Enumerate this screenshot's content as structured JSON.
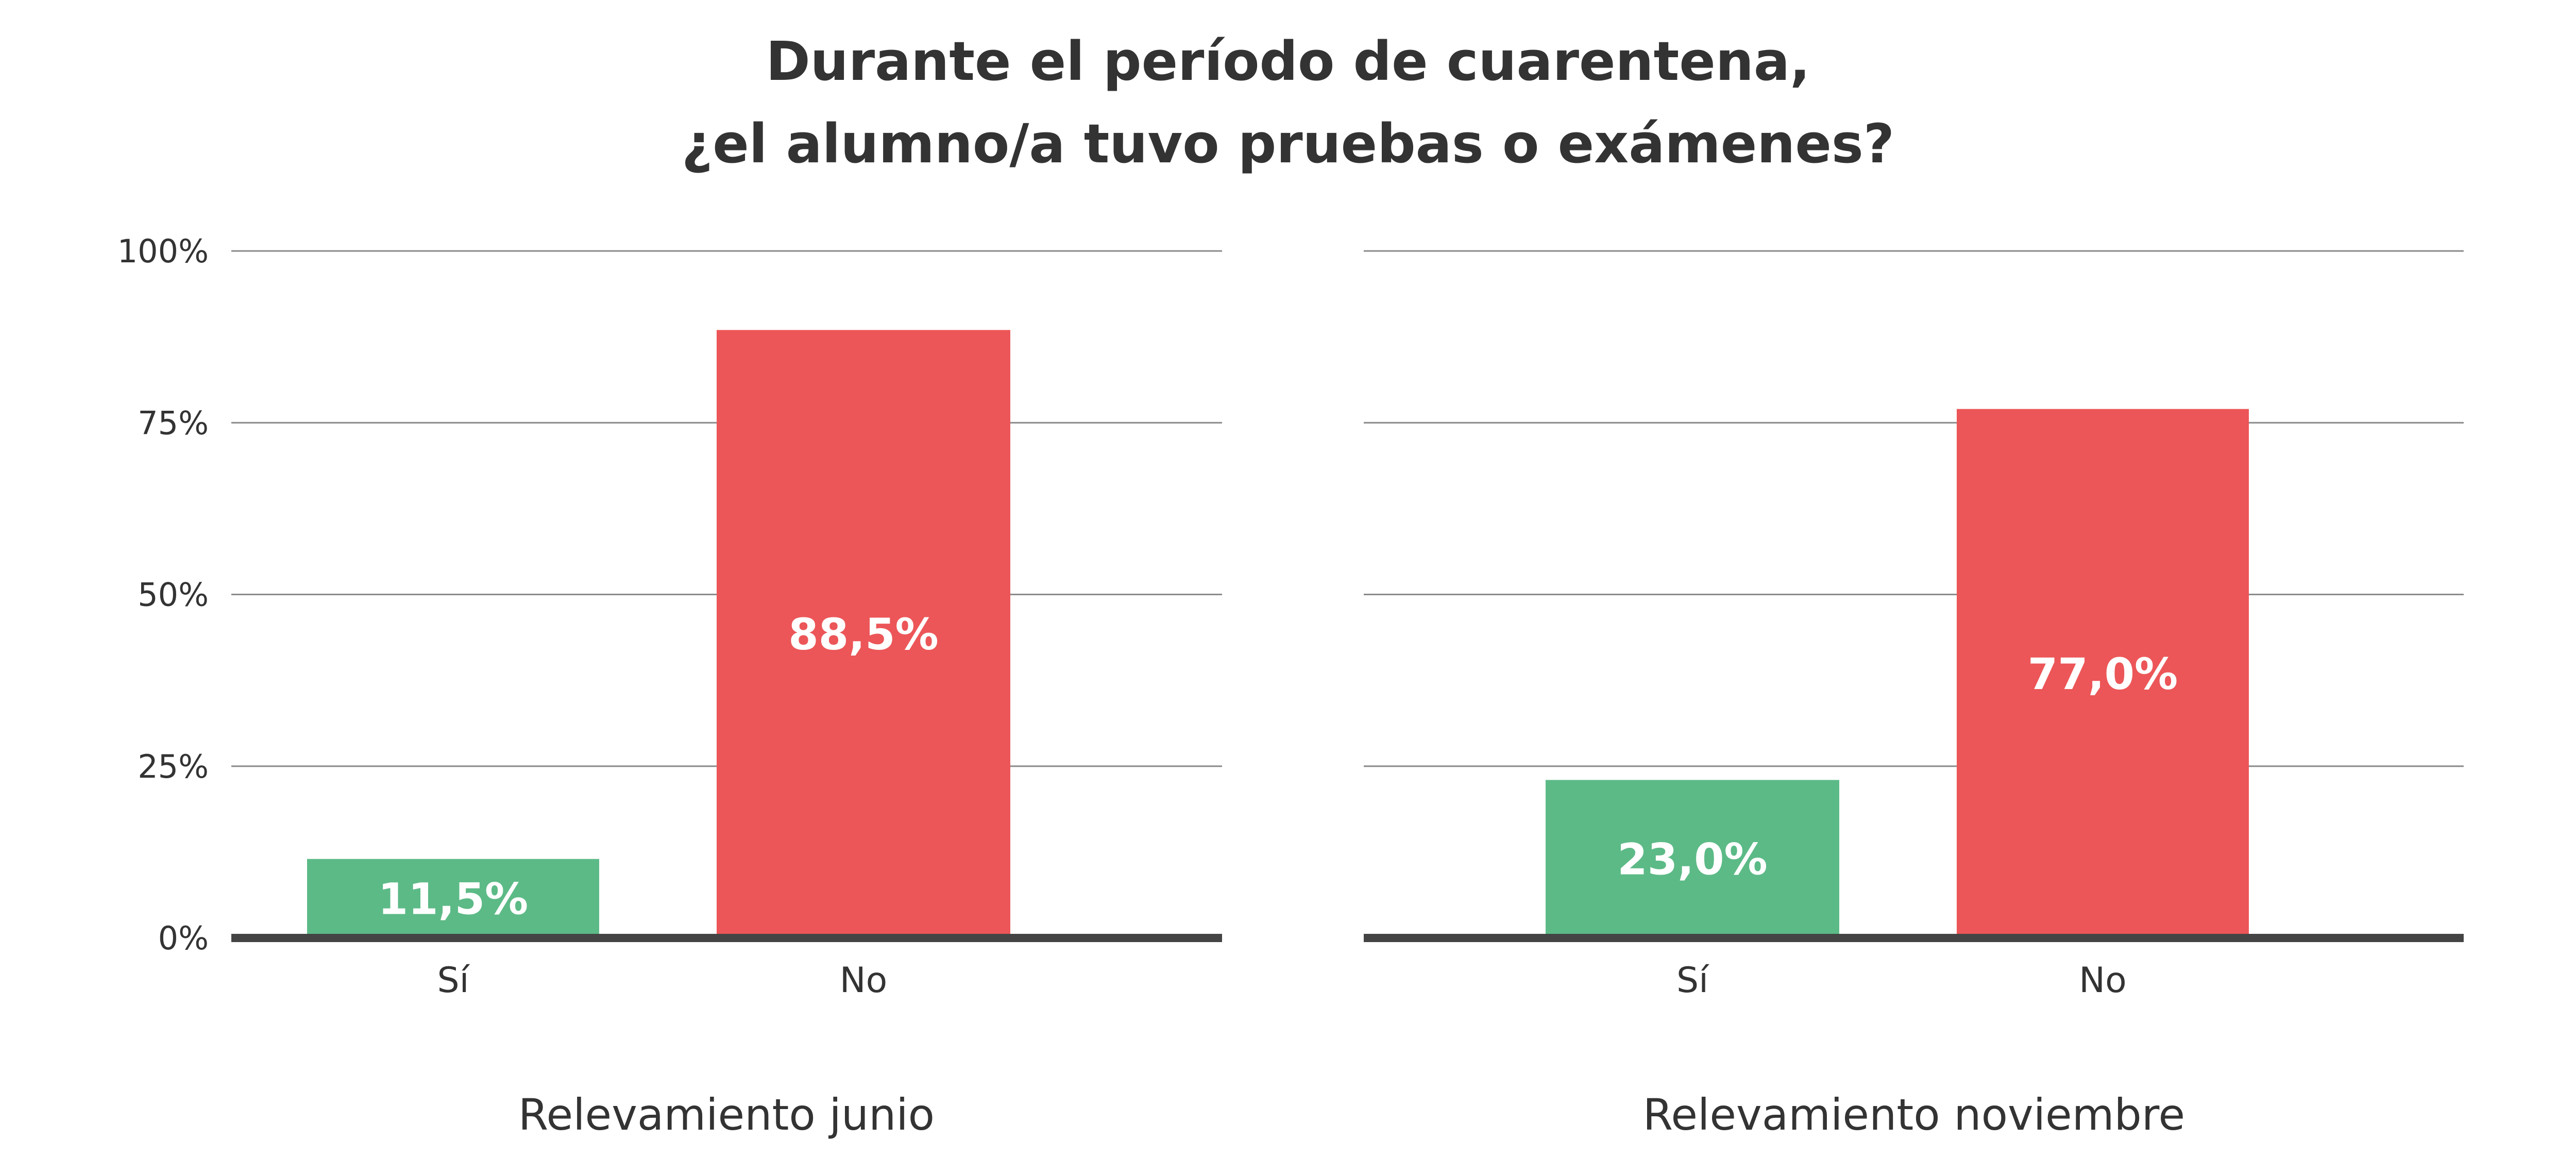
{
  "title_lines": [
    "Durante el período de cuarentena,",
    "¿el alumno/a tuvo pruebas o exámenes?"
  ],
  "colors": {
    "si": "#5cba86",
    "no": "#ec5658",
    "text": "#333333",
    "grid": "#8a8a8a",
    "baseline": "#444444"
  },
  "chart_data": [
    {
      "type": "bar",
      "xlabel": "Relevamiento junio",
      "categories": [
        "Sí",
        "No"
      ],
      "values": [
        11.5,
        88.5
      ],
      "data_labels": [
        "11,5%",
        "88,5%"
      ],
      "ylim": [
        0,
        100
      ],
      "yticks": [
        0,
        25,
        50,
        75,
        100
      ],
      "ytick_labels": [
        "0%",
        "25%",
        "50%",
        "75%",
        "100%"
      ],
      "grid": true
    },
    {
      "type": "bar",
      "xlabel": "Relevamiento noviembre",
      "categories": [
        "Sí",
        "No"
      ],
      "values": [
        23.0,
        77.0
      ],
      "data_labels": [
        "23,0%",
        "77,0%"
      ],
      "ylim": [
        0,
        100
      ],
      "yticks": [
        0,
        25,
        50,
        75,
        100
      ],
      "grid": true
    }
  ]
}
